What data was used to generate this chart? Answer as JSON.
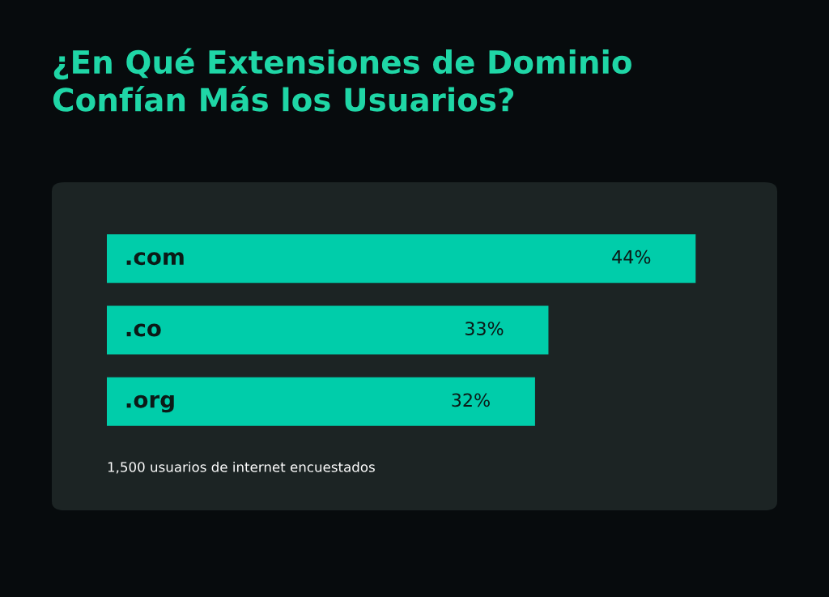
{
  "chart_data": {
    "type": "bar",
    "orientation": "horizontal",
    "title": "¿En Qué Extensiones de Dominio\nConfían Más los Usuarios?",
    "categories": [
      ".com",
      ".co",
      ".org"
    ],
    "values": [
      44,
      33,
      32
    ],
    "value_labels": [
      "44%",
      "33%",
      "32%"
    ],
    "color": "#00cdaa",
    "annotations": [
      "1,500 usuarios de internet encuestados"
    ]
  }
}
